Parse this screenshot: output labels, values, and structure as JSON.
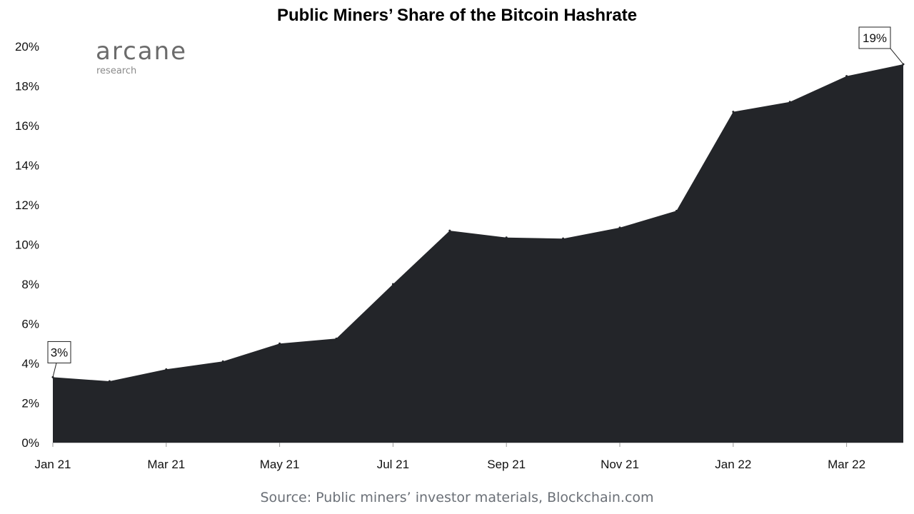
{
  "chart_data": {
    "type": "area",
    "title": "Public Miners’ Share of the Bitcoin Hashrate",
    "source": "Source: Public miners’ investor materials, Blockchain.com",
    "logo": {
      "name": "arcane",
      "subtitle": "research"
    },
    "xlabel": "",
    "ylabel": "",
    "x": [
      "Jan 21",
      "Feb 21",
      "Mar 21",
      "Apr 21",
      "May 21",
      "Jun 21",
      "Jul 21",
      "Aug 21",
      "Sep 21",
      "Oct 21",
      "Nov 21",
      "Dec 21",
      "Jan 22",
      "Feb 22",
      "Mar 22",
      "Apr 22"
    ],
    "x_tick_labels": [
      "Jan 21",
      "Mar 21",
      "May 21",
      "Jul 21",
      "Sep 21",
      "Nov 21",
      "Jan 22",
      "Mar 22"
    ],
    "y_tick_labels": [
      "0%",
      "2%",
      "4%",
      "6%",
      "8%",
      "10%",
      "12%",
      "14%",
      "16%",
      "18%",
      "20%"
    ],
    "ylim": [
      0,
      20
    ],
    "series": [
      {
        "values": [
          3.3,
          3.1,
          3.7,
          4.1,
          5.0,
          5.25,
          8.0,
          10.7,
          10.35,
          10.3,
          10.85,
          11.7,
          16.7,
          17.2,
          18.5,
          19.1
        ]
      }
    ],
    "annotations": [
      {
        "text": "3%",
        "index": 0
      },
      {
        "text": "19%",
        "index": 15
      }
    ],
    "fill_color": "#232529",
    "grid": false,
    "legend": "none"
  }
}
